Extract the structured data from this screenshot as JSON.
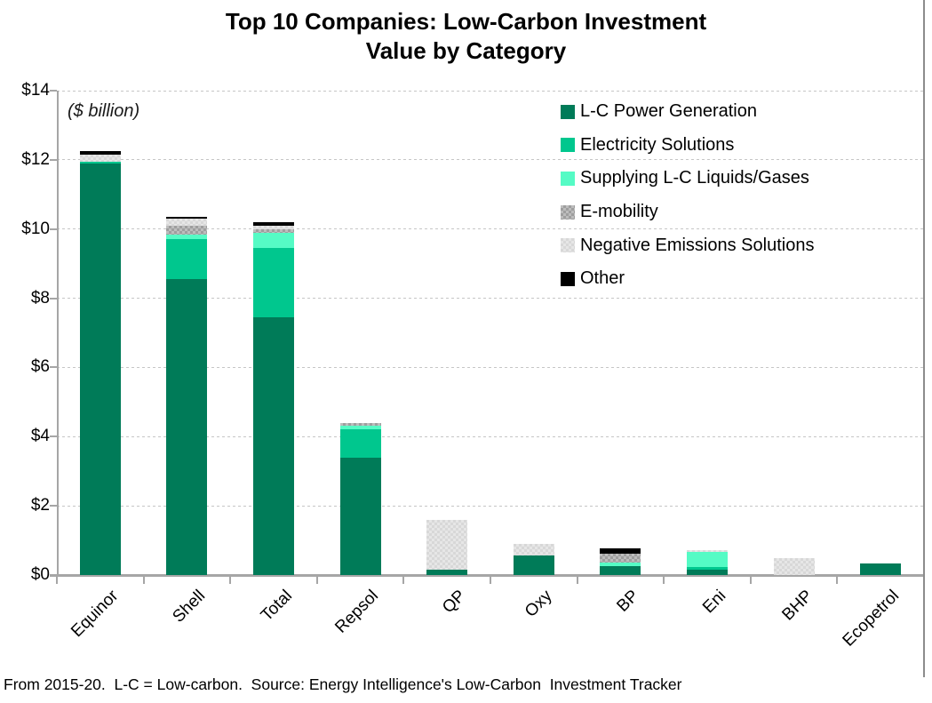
{
  "header": {
    "title_line1": "Top 10 Companies: Low-Carbon Investment",
    "title_line2": "Value by Category"
  },
  "plot": {
    "unit_label": "($ billion)"
  },
  "footer": {
    "note": "From 2015-20.  L-C = Low-carbon.  Source: Energy Intelligence's Low-Carbon  Investment Tracker"
  },
  "chart_data": {
    "type": "bar",
    "stacked": true,
    "title": "Top 10 Companies: Low-Carbon Investment Value by Category",
    "unit": "$ billion",
    "xlabel": "",
    "ylabel": "($ billion)",
    "ylim": [
      0,
      14
    ],
    "ytick_step": 2,
    "ytick_labels": [
      "$0",
      "$2",
      "$4",
      "$6",
      "$8",
      "$10",
      "$12",
      "$14"
    ],
    "grid": "horizontal-dotted",
    "legend_position": "top-right-inside",
    "categories": [
      "Equinor",
      "Shell",
      "Total",
      "Repsol",
      "QP",
      "Oxy",
      "BP",
      "Eni",
      "BHP",
      "Ecopetrol"
    ],
    "series": [
      {
        "name": "L-C Power Generation",
        "color": "#007B58",
        "values": [
          11.9,
          8.55,
          7.45,
          3.4,
          0.15,
          0.57,
          0.25,
          0.16,
          0,
          0.33
        ]
      },
      {
        "name": "Electricity Solutions",
        "color": "#00C78E",
        "values": [
          0.05,
          1.15,
          2.0,
          0.8,
          0,
          0,
          0,
          0.07,
          0,
          0
        ]
      },
      {
        "name": "Supplying L-C Liquids/Gases",
        "color": "#55FBC5",
        "values": [
          0,
          0.15,
          0.45,
          0.12,
          0,
          0,
          0.12,
          0.45,
          0,
          0
        ]
      },
      {
        "name": "E-mobility",
        "color": "#9E9E9E",
        "color2": "#BDBDBD",
        "values": [
          0,
          0.25,
          0.1,
          0.08,
          0,
          0,
          0.25,
          0,
          0,
          0
        ]
      },
      {
        "name": "Negative Emissions Solutions",
        "color": "#E6E6E6",
        "color2": "#D8D8D8",
        "values": [
          0.2,
          0.2,
          0.1,
          0,
          1.45,
          0.33,
          0,
          0.05,
          0.5,
          0
        ]
      },
      {
        "name": "Other",
        "color": "#000000",
        "values": [
          0.1,
          0.05,
          0.1,
          0,
          0,
          0,
          0.15,
          0,
          0,
          0
        ]
      }
    ],
    "totals": [
      12.25,
      10.35,
      10.2,
      4.4,
      1.6,
      0.9,
      0.77,
      0.73,
      0.5,
      0.33
    ]
  }
}
